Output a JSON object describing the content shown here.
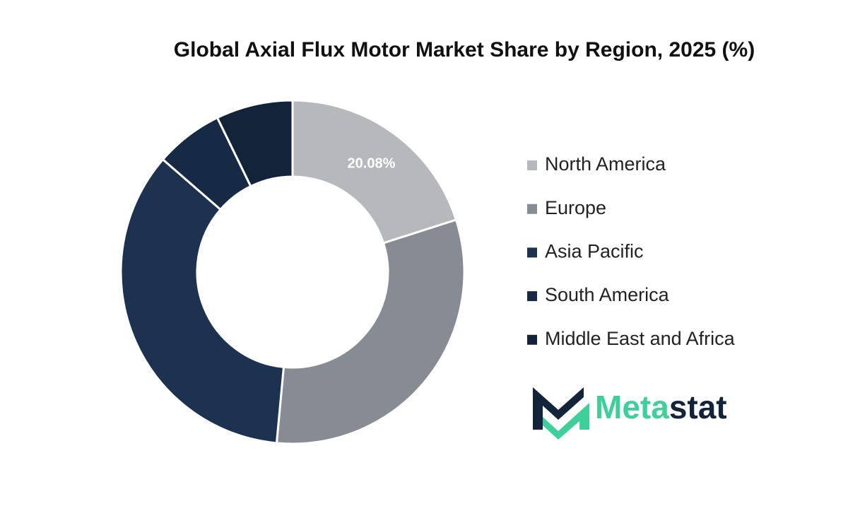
{
  "chart_data": {
    "type": "pie",
    "donut": true,
    "title": "Global Axial Flux Motor Market Share by Region, 2025 (%)",
    "categories": [
      "North America",
      "Europe",
      "Asia Pacific",
      "South America",
      "Middle East and Africa"
    ],
    "values": [
      20.08,
      31.4,
      34.9,
      6.4,
      7.22
    ],
    "value_labels": [
      "20.08%",
      null,
      null,
      null,
      null
    ],
    "colors": [
      "#b7b8bc",
      "#868b94",
      "#1c3250",
      "#172a45",
      "#13233a"
    ],
    "legend": "right"
  },
  "logo": {
    "text": [
      "Meta",
      "stat"
    ]
  }
}
